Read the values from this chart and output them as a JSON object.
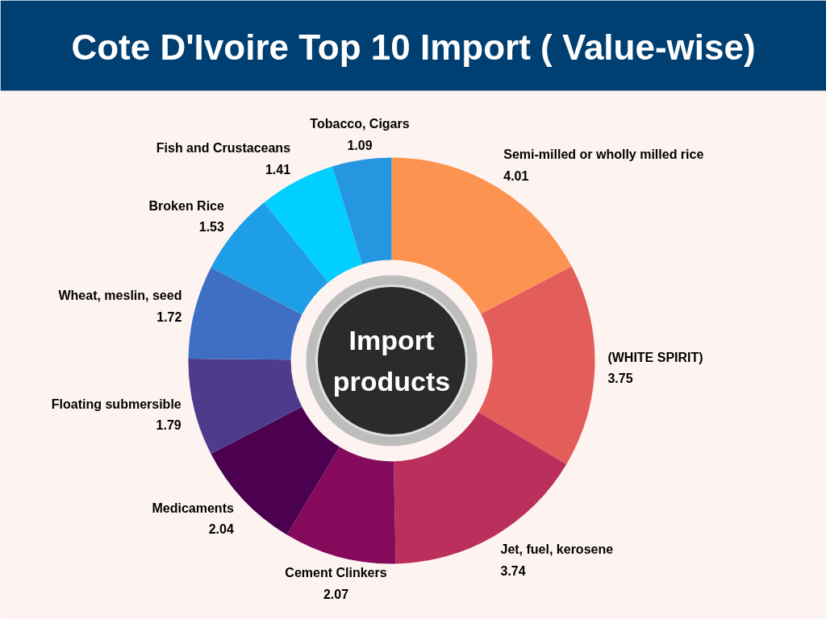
{
  "chart_data": {
    "type": "donut",
    "title": "Cote D'Ivoire Top 10 Import ( Value-wise)",
    "categories": [
      "Semi-milled or wholly milled rice",
      "(WHITE SPIRIT)",
      "Jet, fuel, kerosene",
      "Cement Clinkers",
      "Medicaments",
      "Floating submersible",
      "Wheat, meslin, seed",
      "Broken Rice",
      "Fish and Crustaceans",
      "Tobacco, Cigars"
    ],
    "values": [
      4.01,
      3.75,
      3.74,
      2.07,
      2.04,
      1.79,
      1.72,
      1.53,
      1.41,
      1.09
    ],
    "colors": [
      "#fd9350",
      "#e35d5a",
      "#bb2f5c",
      "#850a5b",
      "#4b0050",
      "#4d3b8c",
      "#3f6fc5",
      "#1e9ee6",
      "#00cfff",
      "#2596e0"
    ],
    "data_labels": true,
    "annotations": [
      "Import\nproducts"
    ]
  }
}
